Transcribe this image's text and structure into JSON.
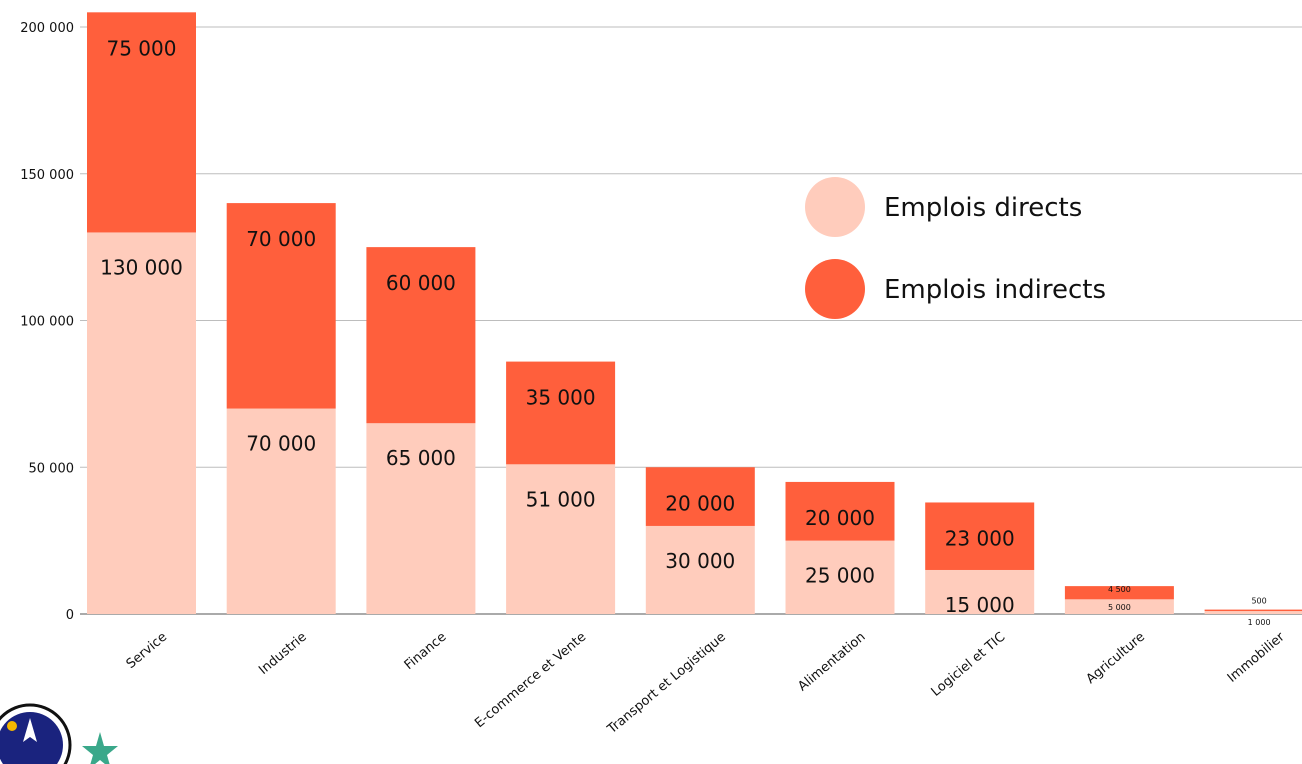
{
  "chart_data": {
    "type": "bar",
    "stacked": true,
    "categories": [
      "Service",
      "Industrie",
      "Finance",
      "E-commerce et Vente",
      "Transport et Logistique",
      "Alimentation",
      "Logiciel et TIC",
      "Agriculture",
      "Immobilier"
    ],
    "series": [
      {
        "name": "Emplois directs",
        "color": "#FFCCBC",
        "values": [
          130000,
          70000,
          65000,
          51000,
          30000,
          25000,
          15000,
          5000,
          1000
        ],
        "labels": [
          "130 000",
          "70 000",
          "65 000",
          "51 000",
          "30 000",
          "25 000",
          "15 000",
          "5 000",
          "1 000"
        ]
      },
      {
        "name": "Emplois indirects",
        "color": "#FF5F3C",
        "values": [
          75000,
          70000,
          60000,
          35000,
          20000,
          20000,
          23000,
          4500,
          500
        ],
        "labels": [
          "75 000",
          "70 000",
          "60 000",
          "35 000",
          "20 000",
          "20 000",
          "23 000",
          "4 500",
          "500"
        ]
      }
    ],
    "yticks": [
      0,
      50000,
      100000,
      150000,
      200000
    ],
    "ytick_labels": [
      "0",
      "50 000",
      "100 000",
      "150 000",
      "200 000"
    ],
    "ylim": [
      0,
      205000
    ],
    "grid": true,
    "legend_position": "right",
    "title": "",
    "xlabel": "",
    "ylabel": ""
  },
  "logos": [
    {
      "name": "circular-emblem-logo",
      "colors": [
        "#1a237e",
        "#ffffff",
        "#f5b800"
      ]
    },
    {
      "name": "green-star-logo",
      "colors": [
        "#3aa88a"
      ]
    }
  ]
}
